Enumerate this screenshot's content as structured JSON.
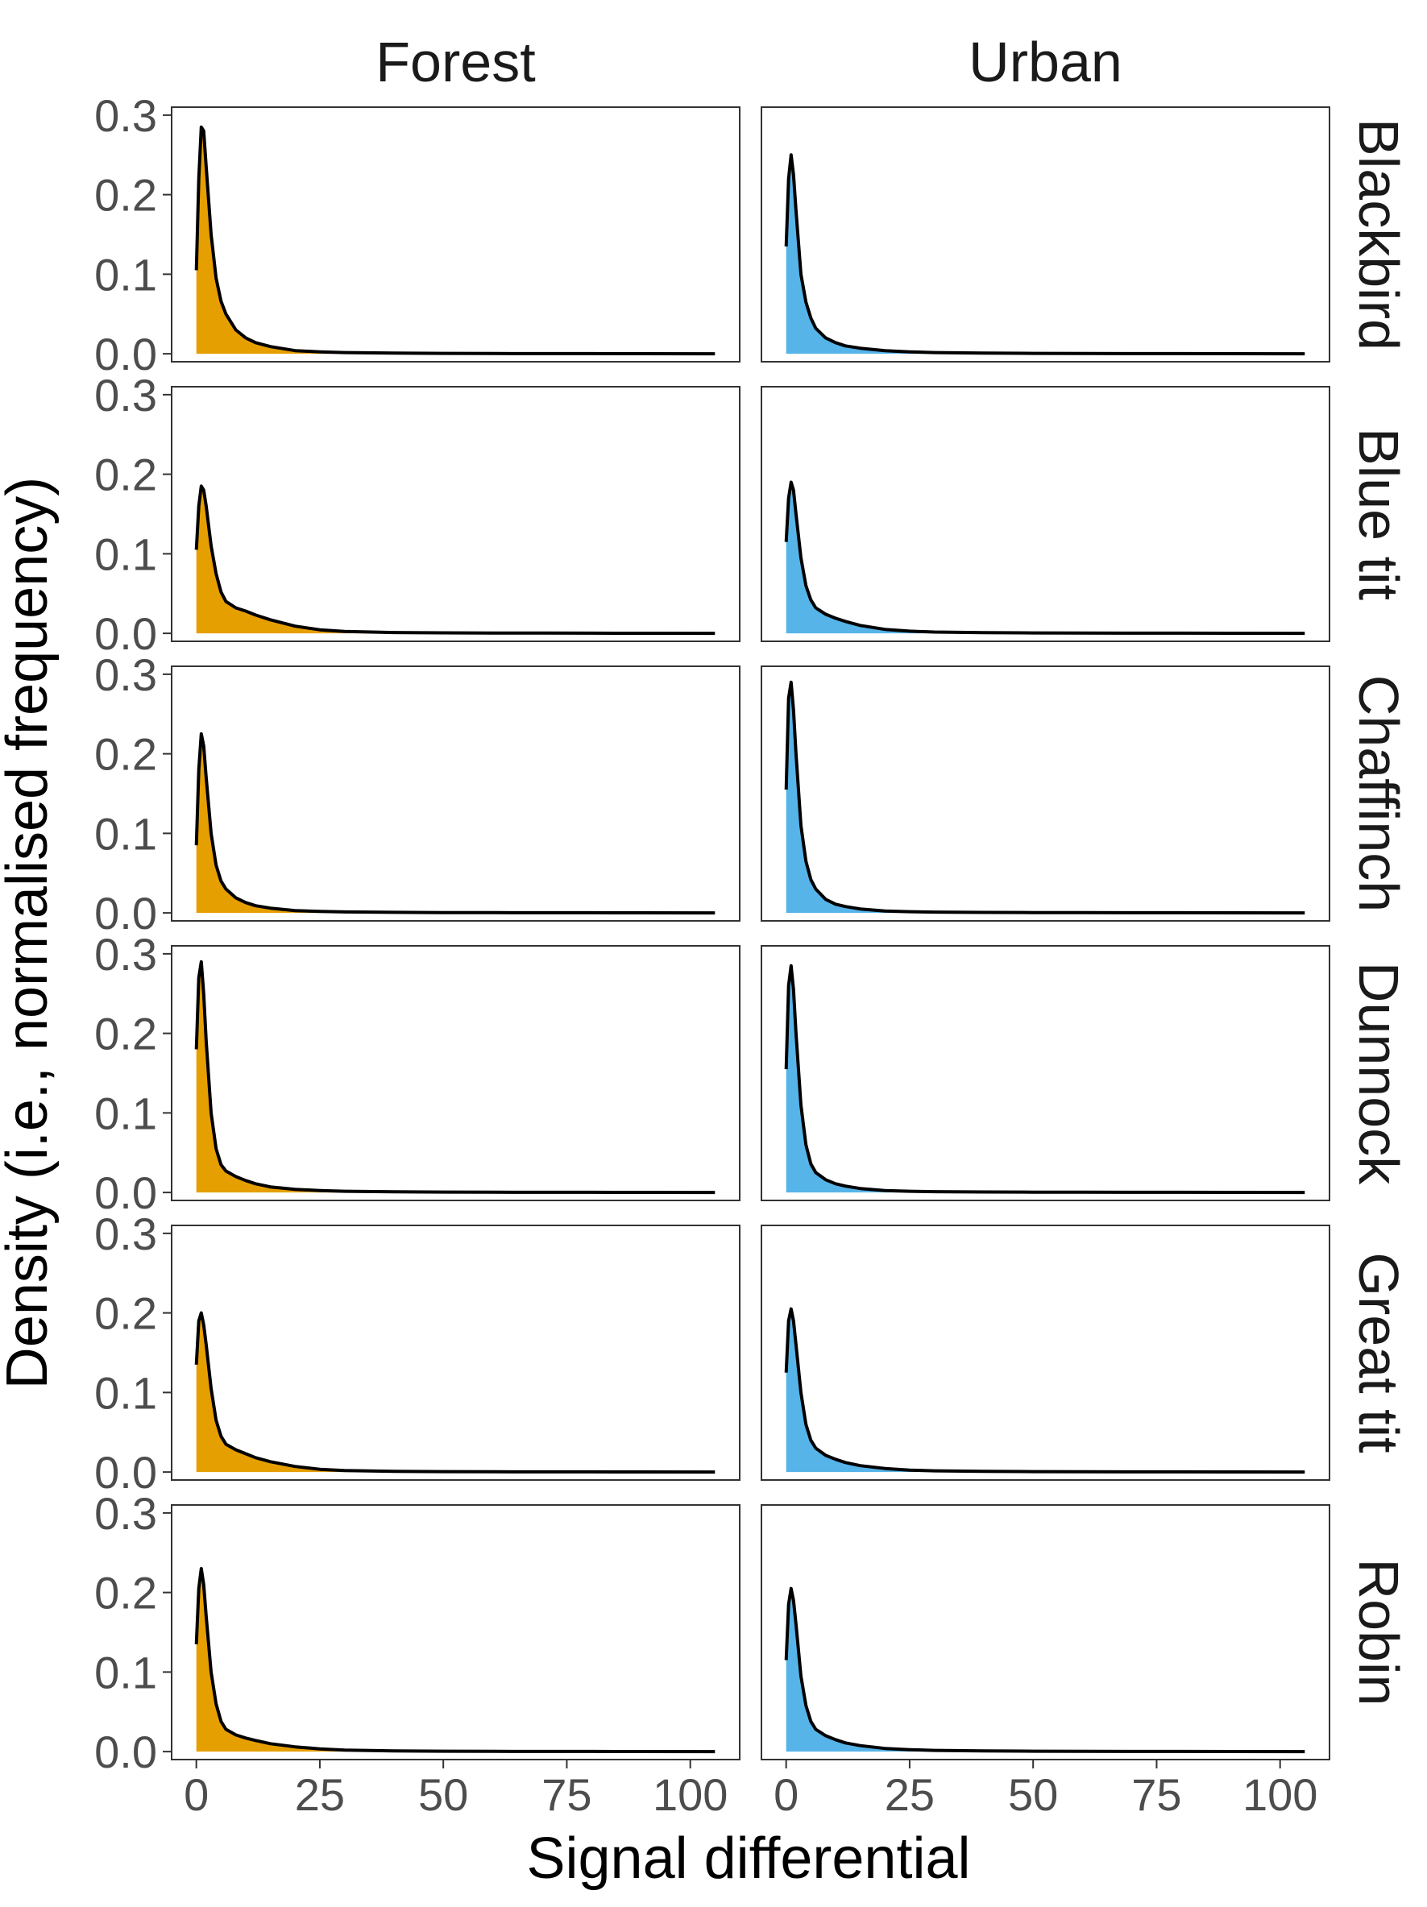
{
  "chart_data": {
    "type": "area",
    "facet_rows": [
      "Blackbird",
      "Blue tit",
      "Chaffinch",
      "Dunnock",
      "Great tit",
      "Robin"
    ],
    "facet_cols": [
      "Forest",
      "Urban"
    ],
    "xlabel": "Signal differential",
    "ylabel": "Density (i.e., normalised frequency)",
    "xlim": [
      -5,
      110
    ],
    "ylim": [
      -0.01,
      0.31
    ],
    "x_ticks": [
      0,
      25,
      50,
      75,
      100
    ],
    "x_tick_labels": [
      "0",
      "25",
      "50",
      "75",
      "100"
    ],
    "y_ticks": [
      0.0,
      0.1,
      0.2,
      0.3
    ],
    "y_tick_labels": [
      "0.0",
      "0.1",
      "0.2",
      "0.3"
    ],
    "grid": false,
    "colors": {
      "Forest": "#E69F00",
      "Urban": "#56B4E9",
      "line": "#000000"
    },
    "x": [
      0,
      0.5,
      1,
      1.5,
      2,
      3,
      4,
      5,
      6,
      8,
      10,
      12,
      15,
      20,
      25,
      30,
      40,
      50,
      60,
      70,
      80,
      90,
      105
    ],
    "series": [
      {
        "facet": "Blackbird",
        "group": "Forest",
        "values": [
          0.105,
          0.22,
          0.285,
          0.28,
          0.235,
          0.15,
          0.095,
          0.066,
          0.05,
          0.03,
          0.02,
          0.014,
          0.009,
          0.004,
          0.0025,
          0.0015,
          0.0008,
          0.0005,
          0.0003,
          0.0002,
          0.0002,
          0.0001,
          0.0
        ]
      },
      {
        "facet": "Blackbird",
        "group": "Urban",
        "values": [
          0.135,
          0.22,
          0.25,
          0.225,
          0.18,
          0.1,
          0.065,
          0.045,
          0.032,
          0.02,
          0.014,
          0.01,
          0.007,
          0.004,
          0.0025,
          0.0015,
          0.0008,
          0.0005,
          0.0003,
          0.0002,
          0.0002,
          0.0001,
          0.0
        ]
      },
      {
        "facet": "Blue tit",
        "group": "Forest",
        "values": [
          0.105,
          0.16,
          0.185,
          0.18,
          0.16,
          0.11,
          0.075,
          0.052,
          0.04,
          0.032,
          0.028,
          0.023,
          0.017,
          0.009,
          0.0045,
          0.0025,
          0.001,
          0.0006,
          0.0004,
          0.0003,
          0.0002,
          0.0001,
          0.0
        ]
      },
      {
        "facet": "Blue tit",
        "group": "Urban",
        "values": [
          0.115,
          0.17,
          0.19,
          0.18,
          0.15,
          0.095,
          0.06,
          0.042,
          0.032,
          0.024,
          0.019,
          0.015,
          0.01,
          0.005,
          0.0028,
          0.0016,
          0.0008,
          0.0005,
          0.0003,
          0.0002,
          0.0002,
          0.0001,
          0.0
        ]
      },
      {
        "facet": "Chaffinch",
        "group": "Forest",
        "values": [
          0.085,
          0.18,
          0.225,
          0.21,
          0.17,
          0.1,
          0.06,
          0.04,
          0.03,
          0.019,
          0.013,
          0.009,
          0.006,
          0.003,
          0.0018,
          0.0012,
          0.0007,
          0.0004,
          0.0003,
          0.0002,
          0.0002,
          0.0001,
          0.0
        ]
      },
      {
        "facet": "Chaffinch",
        "group": "Urban",
        "values": [
          0.155,
          0.27,
          0.29,
          0.255,
          0.2,
          0.11,
          0.065,
          0.042,
          0.03,
          0.017,
          0.011,
          0.008,
          0.005,
          0.0025,
          0.0015,
          0.001,
          0.0006,
          0.0004,
          0.0003,
          0.0002,
          0.0002,
          0.0001,
          0.0
        ]
      },
      {
        "facet": "Dunnock",
        "group": "Forest",
        "values": [
          0.18,
          0.27,
          0.29,
          0.25,
          0.19,
          0.1,
          0.055,
          0.035,
          0.027,
          0.02,
          0.015,
          0.011,
          0.007,
          0.004,
          0.0025,
          0.0015,
          0.0008,
          0.0005,
          0.0003,
          0.0002,
          0.0002,
          0.0001,
          0.0
        ]
      },
      {
        "facet": "Dunnock",
        "group": "Urban",
        "values": [
          0.155,
          0.26,
          0.285,
          0.255,
          0.2,
          0.11,
          0.06,
          0.036,
          0.025,
          0.016,
          0.011,
          0.008,
          0.005,
          0.0025,
          0.0015,
          0.001,
          0.0006,
          0.0004,
          0.0003,
          0.0002,
          0.0002,
          0.0001,
          0.0
        ]
      },
      {
        "facet": "Great tit",
        "group": "Forest",
        "values": [
          0.135,
          0.19,
          0.2,
          0.185,
          0.16,
          0.105,
          0.065,
          0.045,
          0.035,
          0.028,
          0.023,
          0.018,
          0.013,
          0.007,
          0.0035,
          0.002,
          0.0009,
          0.0005,
          0.0003,
          0.0002,
          0.0002,
          0.0001,
          0.0
        ]
      },
      {
        "facet": "Great tit",
        "group": "Urban",
        "values": [
          0.125,
          0.19,
          0.205,
          0.19,
          0.16,
          0.1,
          0.06,
          0.04,
          0.03,
          0.021,
          0.016,
          0.012,
          0.008,
          0.0045,
          0.0025,
          0.0015,
          0.0008,
          0.0005,
          0.0003,
          0.0002,
          0.0002,
          0.0001,
          0.0
        ]
      },
      {
        "facet": "Robin",
        "group": "Forest",
        "values": [
          0.135,
          0.205,
          0.23,
          0.21,
          0.17,
          0.1,
          0.06,
          0.038,
          0.028,
          0.021,
          0.017,
          0.014,
          0.01,
          0.006,
          0.0035,
          0.002,
          0.0009,
          0.0005,
          0.0003,
          0.0002,
          0.0002,
          0.0001,
          0.0
        ]
      },
      {
        "facet": "Robin",
        "group": "Urban",
        "values": [
          0.115,
          0.185,
          0.205,
          0.19,
          0.16,
          0.095,
          0.058,
          0.038,
          0.028,
          0.02,
          0.015,
          0.011,
          0.0075,
          0.004,
          0.0025,
          0.0015,
          0.0008,
          0.0005,
          0.0003,
          0.0002,
          0.0002,
          0.0001,
          0.0
        ]
      }
    ]
  }
}
